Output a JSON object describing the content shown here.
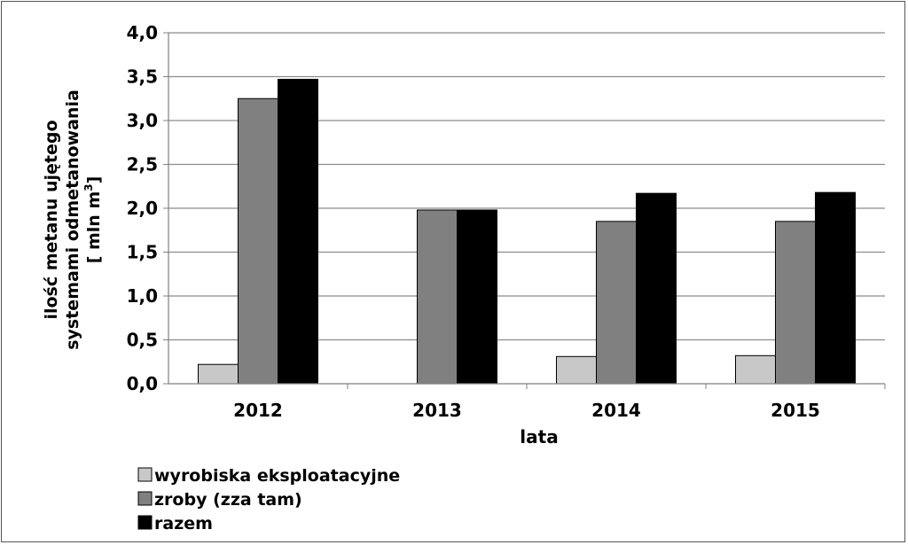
{
  "chart_data": {
    "type": "bar",
    "categories": [
      "2012",
      "2013",
      "2014",
      "2015"
    ],
    "series": [
      {
        "name": "wyrobiska eksploatacyjne",
        "color": "#c8c8c8",
        "values": [
          0.22,
          0,
          0.31,
          0.32
        ]
      },
      {
        "name": "zroby (zza tam)",
        "color": "#808080",
        "values": [
          3.25,
          1.98,
          1.85,
          1.85
        ]
      },
      {
        "name": "razem",
        "color": "#000000",
        "values": [
          3.47,
          1.98,
          2.17,
          2.18
        ]
      }
    ],
    "xlabel": "lata",
    "ylabel_lines": [
      "ilość metanu ujętego",
      "systemami odmetanowania",
      "[ mln m",
      "3",
      "]"
    ],
    "ylim": [
      0,
      4.0
    ],
    "yticks": [
      "0,0",
      "0,5",
      "1,0",
      "1,5",
      "2,0",
      "2,5",
      "3,0",
      "3,5",
      "4,0"
    ],
    "grid": true,
    "legend_position": "bottom-left"
  }
}
